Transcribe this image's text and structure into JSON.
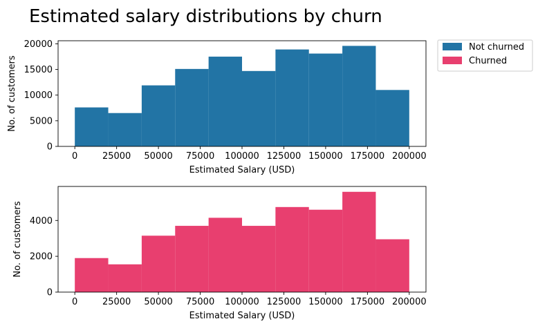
{
  "title": "Estimated salary distributions by churn",
  "legend": {
    "placement": "outside-top-right",
    "entries": [
      {
        "label": "Not churned",
        "color": "#2274a5"
      },
      {
        "label": "Churned",
        "color": "#e83f6f"
      }
    ]
  },
  "chart_data": [
    {
      "type": "bar",
      "subtype": "histogram",
      "series_name": "Not churned",
      "color": "#2274a5",
      "xlabel": "Estimated Salary (USD)",
      "ylabel": "No. of customers",
      "xlim": [
        -10000,
        210000
      ],
      "ylim": [
        0,
        20600
      ],
      "bin_edges": [
        0,
        20000,
        40000,
        60000,
        80000,
        100000,
        120000,
        140000,
        160000,
        180000,
        200000
      ],
      "values": [
        7600,
        6500,
        11900,
        15100,
        17500,
        14700,
        18900,
        18100,
        19600,
        11000
      ],
      "xticks": [
        0,
        25000,
        50000,
        75000,
        100000,
        125000,
        150000,
        175000,
        200000
      ],
      "yticks": [
        0,
        5000,
        10000,
        15000,
        20000
      ]
    },
    {
      "type": "bar",
      "subtype": "histogram",
      "series_name": "Churned",
      "color": "#e83f6f",
      "xlabel": "Estimated Salary (USD)",
      "ylabel": "No. of customers",
      "xlim": [
        -10000,
        210000
      ],
      "ylim": [
        0,
        5900
      ],
      "bin_edges": [
        0,
        20000,
        40000,
        60000,
        80000,
        100000,
        120000,
        140000,
        160000,
        180000,
        200000
      ],
      "values": [
        1900,
        1550,
        3150,
        3700,
        4150,
        3700,
        4750,
        4600,
        5600,
        2950
      ],
      "xticks": [
        0,
        25000,
        50000,
        75000,
        100000,
        125000,
        150000,
        175000,
        200000
      ],
      "yticks": [
        0,
        2000,
        4000
      ]
    }
  ]
}
